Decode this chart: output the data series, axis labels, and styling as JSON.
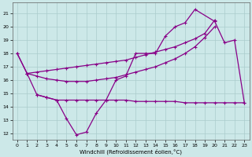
{
  "background_color": "#cce8e8",
  "grid_color": "#aacccc",
  "line_color": "#880088",
  "xlabel": "Windchill (Refroidissement éolien,°C)",
  "xlim": [
    -0.5,
    23.5
  ],
  "ylim": [
    11.5,
    21.8
  ],
  "yticks": [
    12,
    13,
    14,
    15,
    16,
    17,
    18,
    19,
    20,
    21
  ],
  "xticks": [
    0,
    1,
    2,
    3,
    4,
    5,
    6,
    7,
    8,
    9,
    10,
    11,
    12,
    13,
    14,
    15,
    16,
    17,
    18,
    19,
    20,
    21,
    22,
    23
  ],
  "lineA_x": [
    0,
    1,
    2,
    3,
    4,
    5,
    6,
    7,
    8,
    9,
    10,
    11,
    12,
    13,
    14,
    15,
    16,
    17,
    18,
    19,
    20
  ],
  "lineA_y": [
    18.0,
    16.5,
    16.3,
    16.1,
    16.0,
    15.9,
    15.9,
    15.9,
    16.0,
    16.1,
    16.2,
    16.4,
    16.6,
    16.8,
    17.0,
    17.3,
    17.6,
    18.0,
    18.5,
    19.2,
    20.0
  ],
  "lineB_x": [
    0,
    1,
    2,
    3,
    4,
    5,
    6,
    7,
    8,
    9,
    10,
    11,
    12,
    13,
    14,
    15,
    16,
    17,
    18,
    20,
    21,
    22,
    23
  ],
  "lineB_y": [
    18.0,
    16.5,
    14.9,
    14.7,
    14.5,
    13.1,
    11.9,
    12.1,
    13.5,
    14.5,
    16.0,
    16.3,
    18.0,
    18.0,
    18.0,
    19.3,
    20.0,
    20.3,
    21.3,
    20.4,
    18.8,
    19.0,
    14.3
  ],
  "lineC_x": [
    2,
    3,
    4,
    5,
    6,
    7,
    8,
    9,
    10,
    11,
    12,
    13,
    14,
    15,
    16,
    17,
    18,
    19,
    20,
    21,
    22,
    23
  ],
  "lineC_y": [
    14.9,
    14.7,
    14.5,
    14.5,
    14.5,
    14.5,
    14.5,
    14.5,
    14.5,
    14.5,
    14.4,
    14.4,
    14.4,
    14.4,
    14.4,
    14.3,
    14.3,
    14.3,
    14.3,
    14.3,
    14.3,
    14.3
  ],
  "lineD_x": [
    1,
    2,
    3,
    4,
    5,
    6,
    7,
    8,
    9,
    10,
    11,
    12,
    13,
    14,
    15,
    16,
    17,
    18,
    19,
    20
  ],
  "lineD_y": [
    16.5,
    16.6,
    16.7,
    16.8,
    16.9,
    17.0,
    17.1,
    17.2,
    17.3,
    17.4,
    17.5,
    17.7,
    17.9,
    18.1,
    18.3,
    18.5,
    18.8,
    19.1,
    19.5,
    20.5
  ]
}
